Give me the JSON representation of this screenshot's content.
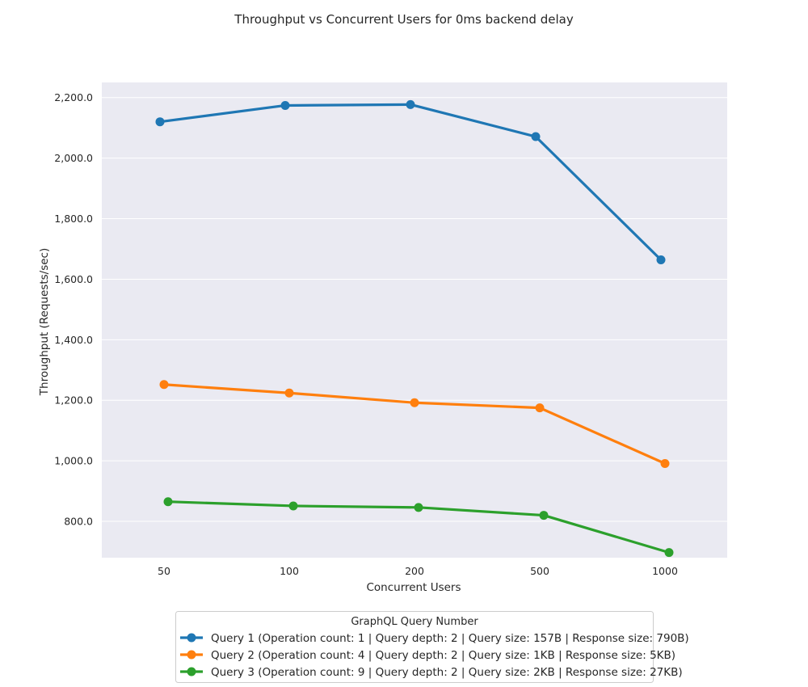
{
  "chart_data": {
    "type": "line",
    "title": "Throughput vs Concurrent Users for 0ms backend delay",
    "xlabel": "Concurrent Users",
    "ylabel": "Throughput (Requests/sec)",
    "categories": [
      "50",
      "100",
      "200",
      "500",
      "1000"
    ],
    "ylim": [
      680,
      2250
    ],
    "yticks": [
      800,
      1000,
      1200,
      1400,
      1600,
      1800,
      2000,
      2200
    ],
    "ytick_labels": [
      "800.0",
      "1,000.0",
      "1,200.0",
      "1,400.0",
      "1,600.0",
      "1,800.0",
      "2,000.0",
      "2,200.0"
    ],
    "grid": true,
    "legend_position": "bottom-center",
    "legend_title": "GraphQL Query Number",
    "series": [
      {
        "name": "Query 1 (Operation count: 1 | Query depth: 2 | Query size: 157B | Response size: 790B)",
        "color": "#1f77b4",
        "values": [
          2120,
          2174,
          2177,
          2071,
          1664
        ]
      },
      {
        "name": "Query 2 (Operation count: 4 | Query depth: 2 | Query size: 1KB | Response size: 5KB)",
        "color": "#ff7f0e",
        "values": [
          1252,
          1224,
          1192,
          1175,
          991
        ]
      },
      {
        "name": "Query 3 (Operation count: 9 | Query depth: 2 | Query size: 2KB | Response size: 27KB)",
        "color": "#2ca02c",
        "values": [
          865,
          851,
          846,
          820,
          697
        ]
      }
    ]
  }
}
